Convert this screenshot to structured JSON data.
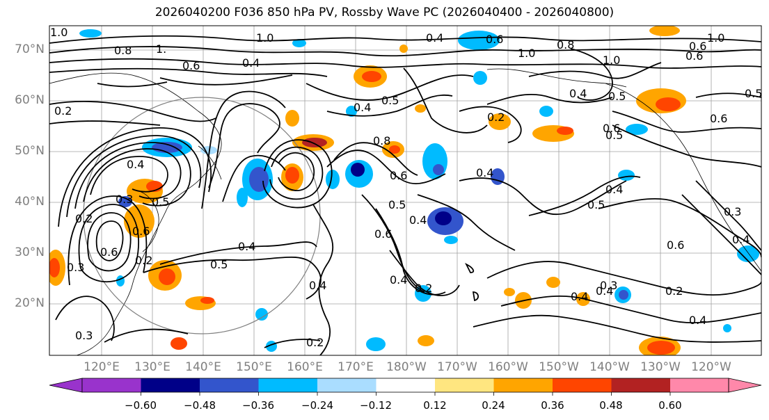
{
  "title": "2026040200 F036 850 hPa PV, Rossby Wave PC (2026040400 - 2026040800)",
  "lat_labels": [
    "70°N",
    "60°N",
    "50°N",
    "40°N",
    "30°N",
    "20°N"
  ],
  "lon_labels": [
    "120°E",
    "130°E",
    "140°E",
    "150°E",
    "160°E",
    "170°E",
    "180°W",
    "170°W",
    "160°W",
    "150°W",
    "140°W",
    "130°W",
    "120°W"
  ],
  "colorbar": {
    "ticks": [
      "−0.60",
      "−0.48",
      "−0.36",
      "−0.24",
      "−0.12",
      "0.12",
      "0.24",
      "0.36",
      "0.48",
      "0.60"
    ],
    "colors": [
      "#9933cc",
      "#000088",
      "#3355cc",
      "#00bbff",
      "#aaddff",
      "#ffffff",
      "#ffe680",
      "#ffa500",
      "#ff4500",
      "#b22222",
      "#ff88aa"
    ]
  },
  "pv_contour_labels": [
    "1.0",
    "0.8",
    "1.",
    "0.6",
    "0.4",
    "1.0",
    "0.4",
    "0.6",
    "0.8",
    "1.0",
    "0.6",
    "1.0",
    "1.0",
    "0.6",
    "0.2",
    "0.4",
    "0.4",
    "0.5",
    "0.4",
    "0.8",
    "0.5",
    "0.6",
    "0.6",
    "0.4",
    "0.5",
    "0.5",
    "0.4",
    "0.4",
    "0.5",
    "0.6",
    "0.3",
    "0.5",
    "0.6",
    "0.2",
    "0.6",
    "0.6",
    "0.4",
    "0.5",
    "0.3",
    "0.3",
    "0.2",
    "0.4",
    "0.2",
    "0.4",
    "0.4",
    "0.3",
    "0.2",
    "0.4",
    "0.2",
    "0.4",
    "0.6",
    "0.4",
    "0.3",
    "0.5",
    "0.2"
  ]
}
